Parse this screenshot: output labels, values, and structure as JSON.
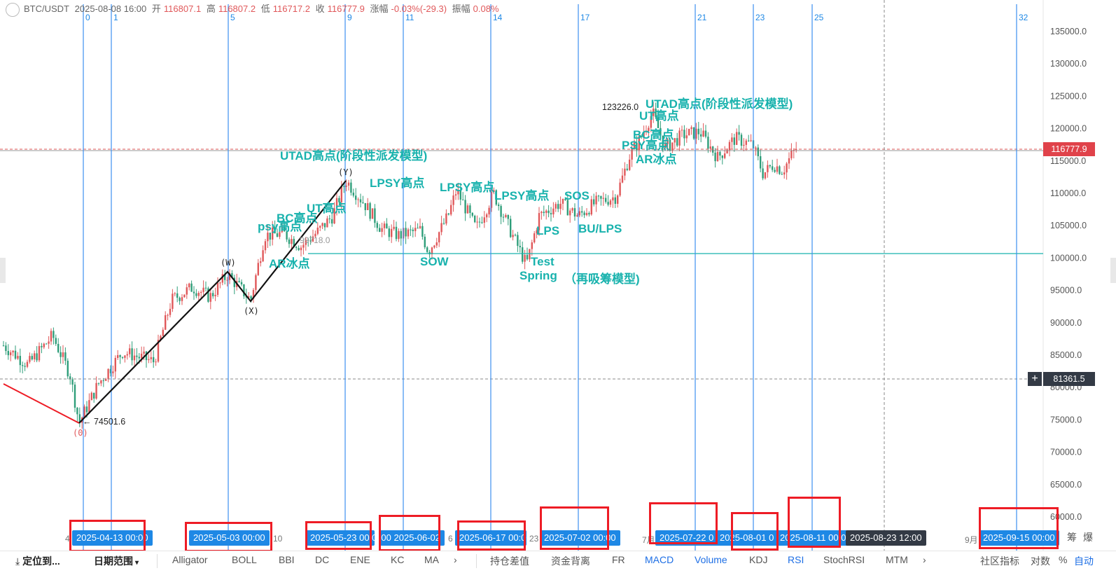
{
  "header": {
    "symbol": "BTC/USDT",
    "datetime": "2025-08-08 16:00",
    "open_label": "开",
    "open_value": "116807.1",
    "high_label": "高",
    "high_value": "116807.2",
    "low_label": "低",
    "low_value": "116717.2",
    "close_label": "收",
    "close_value": "116777.9",
    "change_label": "涨幅",
    "change_value": "-0.03%(-29.3)",
    "amplitude_label": "振幅",
    "amplitude_value": "0.08%"
  },
  "fib_numbers": [
    "0",
    "1",
    "5",
    "9",
    "11",
    "14",
    "17",
    "21",
    "23",
    "25",
    "32"
  ],
  "price_axis": [
    "135000.0",
    "130000.0",
    "125000.0",
    "120000.0",
    "115000.0",
    "110000.0",
    "105000.0",
    "100000.0",
    "95000.0",
    "90000.0",
    "85000.0",
    "80000.0",
    "75000.0",
    "70000.0",
    "65000.0",
    "60000.0"
  ],
  "current_price": "116777.9",
  "crosshair_price": "81361.5",
  "annotations": {
    "utad_left": "UTAD高点(阶段性派发模型)",
    "utad_right": "UTAD高点(阶段性派发模型)",
    "ut_left": "UT高点",
    "bc_left": "BC高点",
    "psy_left": "psy高点",
    "ar_left": "AR冰点",
    "price_left": "99718.0",
    "lpsy1": "LPSY高点",
    "lpsy2": "LPSY高点",
    "lpsy3": "LPSY高点",
    "sow": "SOW",
    "test": "Test",
    "spring": "Spring",
    "reaccum": "（再吸筹模型)",
    "lps": "LPS",
    "sos": "SOS",
    "bu_lps": "BU/LPS",
    "high_value": "123226.0",
    "ut_right": "UT高点",
    "bc_right": "BC高点",
    "psy_right": "PSY高点",
    "ar_right": "AR冰点",
    "low_value": "74501.6",
    "wave_0": "(0)",
    "wave_w": "(W)",
    "wave_x": "(X)",
    "wave_y": "(Y)"
  },
  "date_pills": [
    "2025-04-13 00:00",
    "2025-05-03 00:00",
    "2025-05-23 00:00",
    "2025-06-02 00:00",
    "2025-06-17 00:00",
    "2025-07-02 00:00",
    "2025-07-22 0",
    "2025-08-01 0",
    "2025-08-11 00:00",
    "2025-08-23 12:00",
    "2025-09-15 00:00"
  ],
  "axis_dates": [
    "4",
    "10",
    "6",
    "23",
    "7月",
    "9月"
  ],
  "toolbar": {
    "locate": "定位到...",
    "date_range": "日期范围",
    "indicators_main": [
      "Alligator",
      "BOLL",
      "BBI",
      "DC",
      "ENE",
      "KC",
      "MA"
    ],
    "indicators_sub": [
      "持仓差值",
      "资金背离",
      "FR",
      "MACD",
      "Volume",
      "KDJ",
      "RSI",
      "StochRSI",
      "MTM"
    ],
    "community": "社区指标",
    "log": "对数",
    "percent": "%",
    "auto": "自动",
    "extra": "筹",
    "extra2": "爆"
  },
  "colors": {
    "up": "#e0585a",
    "down": "#2f9e7a",
    "teal": "#18b2ad",
    "blue_line": "#1e88e5",
    "red_box": "#ee1c25"
  }
}
